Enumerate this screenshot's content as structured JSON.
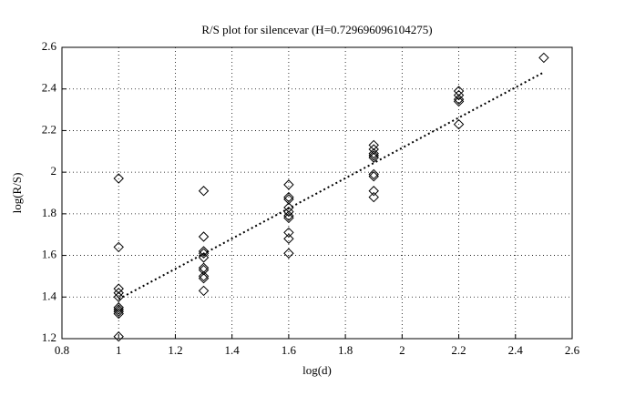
{
  "chart_data": {
    "type": "scatter",
    "title": "R/S plot for silencevar (H=0.729696096104275)",
    "x_label": "log(d)",
    "y_label": "log(R/S)",
    "xlim": [
      0.8,
      2.6
    ],
    "xticks": [
      0.8,
      1,
      1.2,
      1.4,
      1.6,
      1.8,
      2,
      2.2,
      2.4,
      2.6
    ],
    "ylim": [
      1.2,
      2.6
    ],
    "yticks": [
      1.2,
      1.4,
      1.6,
      1.8,
      2,
      2.2,
      2.4,
      2.6
    ],
    "grid": true,
    "series": [
      {
        "color": "#000000",
        "marker": "diamond",
        "x": [
          1,
          1,
          1,
          1,
          1,
          1,
          1,
          1,
          1,
          1,
          1.3,
          1.3,
          1.3,
          1.3,
          1.3,
          1.3,
          1.3,
          1.3,
          1.3,
          1.3,
          1.6,
          1.6,
          1.6,
          1.6,
          1.6,
          1.6,
          1.6,
          1.6,
          1.6,
          1.6,
          1.9,
          1.9,
          1.9,
          1.9,
          1.9,
          1.9,
          1.9,
          1.9,
          1.9,
          2.2,
          2.2,
          2.2,
          2.2,
          2.2,
          2.5
        ],
        "values": [
          1.97,
          1.64,
          1.44,
          1.42,
          1.4,
          1.35,
          1.34,
          1.33,
          1.32,
          1.21,
          1.91,
          1.69,
          1.62,
          1.61,
          1.59,
          1.54,
          1.53,
          1.5,
          1.49,
          1.43,
          1.94,
          1.88,
          1.87,
          1.83,
          1.81,
          1.79,
          1.78,
          1.71,
          1.68,
          1.61,
          2.13,
          2.11,
          2.09,
          2.08,
          2.07,
          1.99,
          1.98,
          1.91,
          1.88,
          2.39,
          2.37,
          2.35,
          2.34,
          2.23,
          2.55
        ]
      },
      {
        "color": "#000000",
        "line_style": "dotted",
        "x": [
          1,
          2.5
        ],
        "values": [
          1.39,
          2.48
        ]
      }
    ]
  }
}
